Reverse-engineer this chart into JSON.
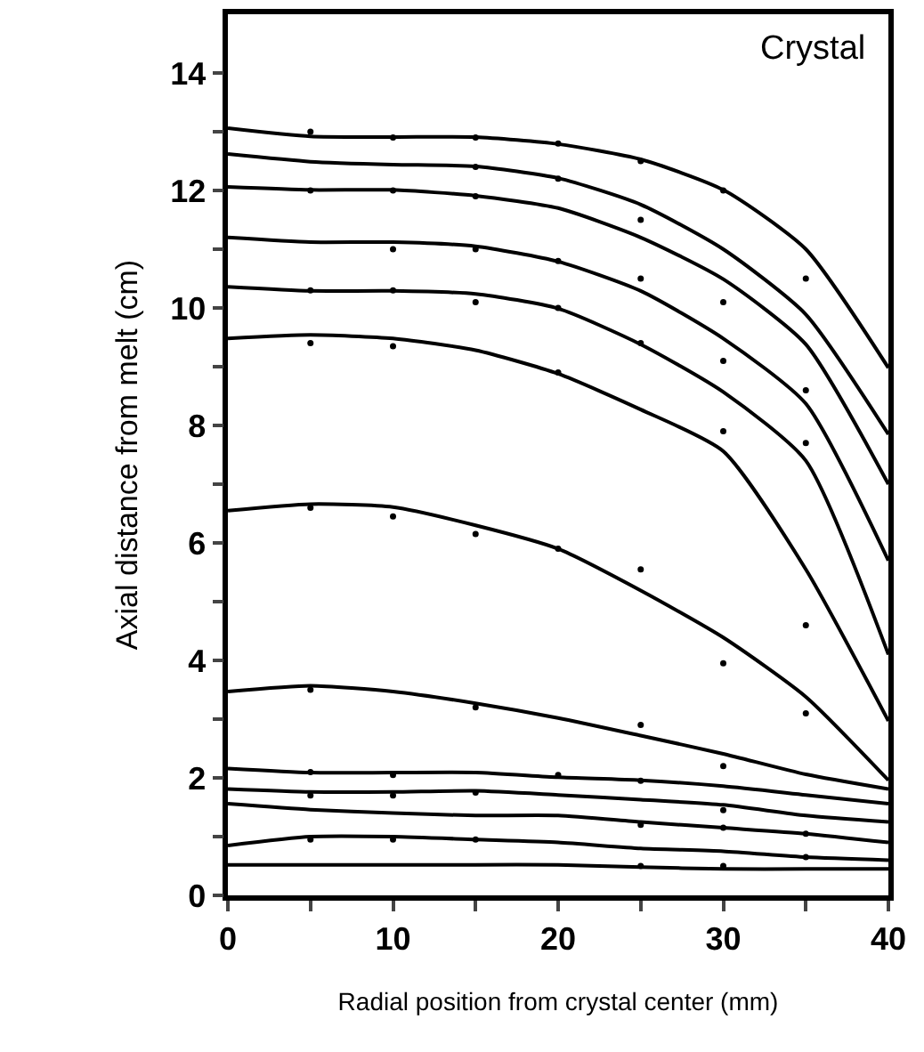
{
  "chart_data": {
    "type": "line",
    "xlabel": "Radial position from crystal center (mm)",
    "ylabel": "Axial distance from melt (cm)",
    "annotations": [
      "Crystal"
    ],
    "xlim": [
      0,
      40
    ],
    "ylim": [
      0,
      15
    ],
    "xticks": [
      0,
      {
        "value": 5,
        "label": null
      },
      10,
      {
        "value": 15,
        "label": null
      },
      20,
      {
        "value": 25,
        "label": null
      },
      30,
      {
        "value": 35,
        "label": null
      },
      40
    ],
    "yticks": [
      0,
      {
        "value": 1,
        "label": null
      },
      2,
      {
        "value": 3,
        "label": null
      },
      4,
      {
        "value": 5,
        "label": null
      },
      6,
      {
        "value": 7,
        "label": null
      },
      8,
      {
        "value": 9,
        "label": null
      },
      10,
      {
        "value": 11,
        "label": null
      },
      12,
      {
        "value": 13,
        "label": null
      },
      14
    ],
    "grid": false,
    "marker": "none",
    "line_style": "solid",
    "x": [
      0,
      5,
      10,
      15,
      20,
      25,
      30,
      35,
      40
    ],
    "series": [
      {
        "color": "#000000",
        "values": [
          13.06,
          12.92,
          12.91,
          12.91,
          12.79,
          12.53,
          12.01,
          11.0,
          8.98
        ]
      },
      {
        "color": "#000000",
        "values": [
          12.62,
          12.49,
          12.44,
          12.41,
          12.21,
          11.76,
          11.0,
          9.89,
          7.85
        ]
      },
      {
        "color": "#000000",
        "values": [
          12.06,
          12.01,
          12.01,
          11.91,
          11.7,
          11.2,
          10.49,
          9.38,
          7.0
        ]
      },
      {
        "color": "#000000",
        "values": [
          11.2,
          11.12,
          11.12,
          11.05,
          10.79,
          10.29,
          9.48,
          8.37,
          5.7
        ]
      },
      {
        "color": "#000000",
        "values": [
          10.36,
          10.29,
          10.29,
          10.24,
          9.99,
          9.38,
          8.57,
          7.4,
          4.1
        ]
      },
      {
        "color": "#000000",
        "values": [
          9.48,
          9.54,
          9.48,
          9.28,
          8.88,
          8.27,
          7.56,
          5.55,
          2.97
        ]
      },
      {
        "color": "#000000",
        "values": [
          6.55,
          6.66,
          6.61,
          6.3,
          5.9,
          5.19,
          4.39,
          3.38,
          1.96
        ]
      },
      {
        "color": "#000000",
        "values": [
          3.47,
          3.57,
          3.47,
          3.27,
          3.02,
          2.72,
          2.41,
          2.06,
          1.81
        ]
      },
      {
        "color": "#000000",
        "values": [
          2.16,
          2.09,
          2.09,
          2.09,
          2.01,
          1.96,
          1.86,
          1.71,
          1.56
        ]
      },
      {
        "color": "#000000",
        "values": [
          1.81,
          1.76,
          1.76,
          1.78,
          1.71,
          1.63,
          1.54,
          1.36,
          1.25
        ]
      },
      {
        "color": "#000000",
        "values": [
          1.56,
          1.46,
          1.4,
          1.36,
          1.36,
          1.25,
          1.15,
          1.05,
          0.9
        ]
      },
      {
        "color": "#000000",
        "values": [
          0.85,
          1.0,
          1.0,
          0.95,
          0.9,
          0.8,
          0.75,
          0.65,
          0.6
        ]
      },
      {
        "color": "#000000",
        "values": [
          0.52,
          0.52,
          0.52,
          0.52,
          0.52,
          0.48,
          0.45,
          0.45,
          0.45
        ]
      },
      {
        "type": "scatter",
        "marker": "circle",
        "color": "#000000",
        "x": [
          5,
          10,
          15,
          20,
          25,
          30,
          35,
          15,
          20,
          25,
          30,
          35,
          5,
          10,
          15,
          25,
          30,
          35,
          10,
          15,
          20,
          30,
          5,
          10,
          15,
          20,
          25,
          5,
          10,
          20,
          5,
          10,
          15,
          20,
          25,
          30,
          35,
          5,
          15,
          25,
          30,
          35,
          5,
          10,
          20,
          25,
          30,
          35,
          5,
          10,
          15,
          25,
          30,
          35,
          5,
          10,
          15,
          25,
          30
        ],
        "values": [
          13.0,
          12.9,
          12.9,
          12.8,
          12.5,
          12.0,
          10.5,
          12.4,
          12.2,
          11.5,
          10.1,
          8.6,
          12.0,
          12.0,
          11.9,
          10.5,
          9.1,
          7.7,
          11.0,
          11.0,
          10.8,
          7.9,
          10.3,
          10.3,
          10.1,
          10.0,
          9.4,
          9.4,
          9.35,
          8.9,
          6.6,
          6.45,
          6.15,
          5.9,
          5.55,
          3.95,
          4.6,
          3.5,
          3.2,
          2.9,
          2.2,
          3.1,
          2.1,
          2.05,
          2.05,
          1.95,
          1.45,
          1.05,
          1.7,
          1.7,
          1.75,
          1.2,
          1.15,
          0.65,
          0.95,
          0.95,
          0.95,
          0.5,
          0.5
        ]
      }
    ]
  }
}
